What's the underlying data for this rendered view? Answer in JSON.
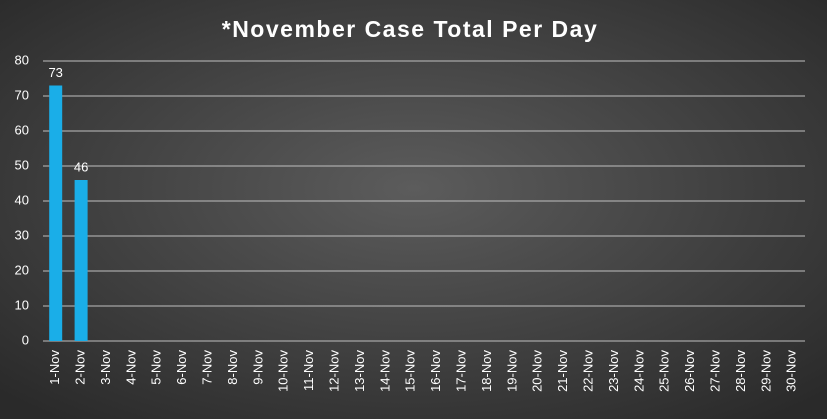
{
  "chart_data": {
    "type": "bar",
    "title": "*November Case Total Per Day",
    "categories": [
      "1-Nov",
      "2-Nov",
      "3-Nov",
      "4-Nov",
      "5-Nov",
      "6-Nov",
      "7-Nov",
      "8-Nov",
      "9-Nov",
      "10-Nov",
      "11-Nov",
      "12-Nov",
      "13-Nov",
      "14-Nov",
      "15-Nov",
      "16-Nov",
      "17-Nov",
      "18-Nov",
      "19-Nov",
      "20-Nov",
      "21-Nov",
      "22-Nov",
      "23-Nov",
      "24-Nov",
      "25-Nov",
      "26-Nov",
      "27-Nov",
      "28-Nov",
      "29-Nov",
      "30-Nov"
    ],
    "values": [
      73,
      46,
      null,
      null,
      null,
      null,
      null,
      null,
      null,
      null,
      null,
      null,
      null,
      null,
      null,
      null,
      null,
      null,
      null,
      null,
      null,
      null,
      null,
      null,
      null,
      null,
      null,
      null,
      null,
      null
    ],
    "color": "#1aaee8",
    "ylim": [
      0,
      80
    ],
    "yticks": [
      0,
      10,
      20,
      30,
      40,
      50,
      60,
      70,
      80
    ],
    "grid": true
  }
}
